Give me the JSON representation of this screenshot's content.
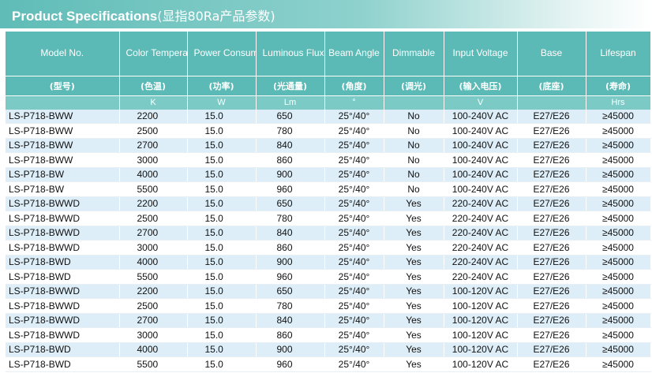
{
  "title": {
    "main": "Product Specifications",
    "cn": "(显指80Ra产品参数)"
  },
  "columns": [
    {
      "en": "Model No.",
      "cn": "(型号)",
      "unit": ""
    },
    {
      "en": "Color Temperature",
      "cn": "(色温)",
      "unit": "K"
    },
    {
      "en": "Power Consumption",
      "cn": "(功率)",
      "unit": "W"
    },
    {
      "en": "Luminous Flux",
      "cn": "(光通量)",
      "unit": "Lm"
    },
    {
      "en": "Beam Angle",
      "cn": "(角度)",
      "unit": "°"
    },
    {
      "en": "Dimmable",
      "cn": "(调光)",
      "unit": ""
    },
    {
      "en": "Input Voltage",
      "cn": "(输入电压)",
      "unit": "V"
    },
    {
      "en": "Base",
      "cn": "(底座)",
      "unit": ""
    },
    {
      "en": "Lifespan",
      "cn": "(寿命)",
      "unit": "Hrs"
    }
  ],
  "rows": [
    [
      "LS-P718-BWW",
      "2200",
      "15.0",
      "650",
      "25°/40°",
      "No",
      "100-240V AC",
      "E27/E26",
      "≥45000"
    ],
    [
      "LS-P718-BWW",
      "2500",
      "15.0",
      "780",
      "25°/40°",
      "No",
      "100-240V AC",
      "E27/E26",
      "≥45000"
    ],
    [
      "LS-P718-BWW",
      "2700",
      "15.0",
      "840",
      "25°/40°",
      "No",
      "100-240V AC",
      "E27/E26",
      "≥45000"
    ],
    [
      "LS-P718-BWW",
      "3000",
      "15.0",
      "860",
      "25°/40°",
      "No",
      "100-240V AC",
      "E27/E26",
      "≥45000"
    ],
    [
      "LS-P718-BW",
      "4000",
      "15.0",
      "900",
      "25°/40°",
      "No",
      "100-240V AC",
      "E27/E26",
      "≥45000"
    ],
    [
      "LS-P718-BW",
      "5500",
      "15.0",
      "960",
      "25°/40°",
      "No",
      "100-240V AC",
      "E27/E26",
      "≥45000"
    ],
    [
      "LS-P718-BWWD",
      "2200",
      "15.0",
      "650",
      "25°/40°",
      "Yes",
      "220-240V AC",
      "E27/E26",
      "≥45000"
    ],
    [
      "LS-P718-BWWD",
      "2500",
      "15.0",
      "780",
      "25°/40°",
      "Yes",
      "220-240V AC",
      "E27/E26",
      "≥45000"
    ],
    [
      "LS-P718-BWWD",
      "2700",
      "15.0",
      "840",
      "25°/40°",
      "Yes",
      "220-240V AC",
      "E27/E26",
      "≥45000"
    ],
    [
      "LS-P718-BWWD",
      "3000",
      "15.0",
      "860",
      "25°/40°",
      "Yes",
      "220-240V AC",
      "E27/E26",
      "≥45000"
    ],
    [
      "LS-P718-BWD",
      "4000",
      "15.0",
      "900",
      "25°/40°",
      "Yes",
      "220-240V AC",
      "E27/E26",
      "≥45000"
    ],
    [
      "LS-P718-BWD",
      "5500",
      "15.0",
      "960",
      "25°/40°",
      "Yes",
      "220-240V AC",
      "E27/E26",
      "≥45000"
    ],
    [
      "LS-P718-BWWD",
      "2200",
      "15.0",
      "650",
      "25°/40°",
      "Yes",
      "100-120V AC",
      "E27/E26",
      "≥45000"
    ],
    [
      "LS-P718-BWWD",
      "2500",
      "15.0",
      "780",
      "25°/40°",
      "Yes",
      "100-120V AC",
      "E27/E26",
      "≥45000"
    ],
    [
      "LS-P718-BWWD",
      "2700",
      "15.0",
      "840",
      "25°/40°",
      "Yes",
      "100-120V AC",
      "E27/E26",
      "≥45000"
    ],
    [
      "LS-P718-BWWD",
      "3000",
      "15.0",
      "860",
      "25°/40°",
      "Yes",
      "100-120V AC",
      "E27/E26",
      "≥45000"
    ],
    [
      "LS-P718-BWD",
      "4000",
      "15.0",
      "900",
      "25°/40°",
      "Yes",
      "100-120V AC",
      "E27/E26",
      "≥45000"
    ],
    [
      "LS-P718-BWD",
      "5500",
      "15.0",
      "960",
      "25°/40°",
      "Yes",
      "100-120V AC",
      "E27/E26",
      "≥45000"
    ]
  ],
  "colors": {
    "header_bg": "#5bbab5",
    "unit_bg": "#7ccac5",
    "row_stripe": "#ddeef8",
    "header_text": "#ffffff"
  }
}
